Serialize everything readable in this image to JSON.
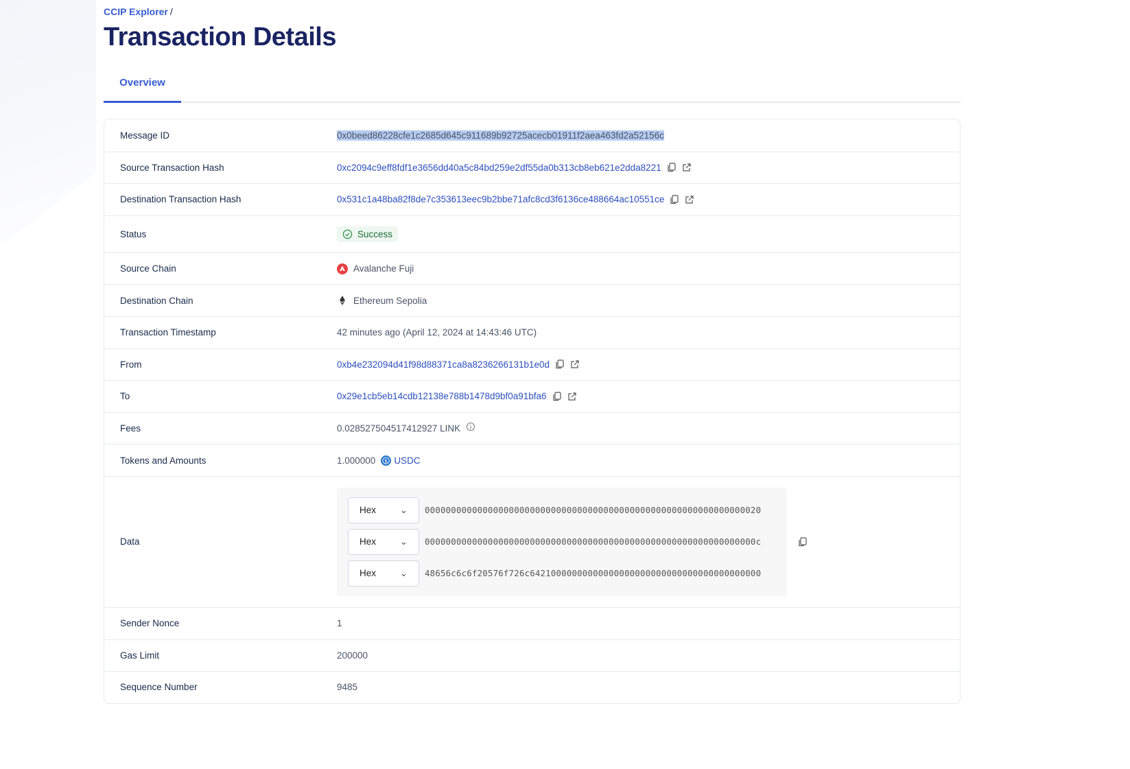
{
  "breadcrumb": {
    "root": "CCIP Explorer",
    "separator": "/"
  },
  "page_title": "Transaction Details",
  "tabs": [
    {
      "label": "Overview",
      "active": true
    }
  ],
  "colors": {
    "accent": "#375bd2",
    "title": "#1a2463",
    "success": "#1f6b3a",
    "avalanche": "#e84142"
  },
  "rows": {
    "message_id": {
      "label": "Message ID",
      "value": "0x0beed86228cfe1c2685d645c911689b92725acecb01911f2aea463fd2a52156c"
    },
    "source_tx": {
      "label": "Source Transaction Hash",
      "value": "0xc2094c9eff8fdf1e3656dd40a5c84bd259e2df55da0b313cb8eb621e2dda8221"
    },
    "dest_tx": {
      "label": "Destination Transaction Hash",
      "value": "0x531c1a48ba82f8de7c353613eec9b2bbe71afc8cd3f6136ce488664ac10551ce"
    },
    "status": {
      "label": "Status",
      "value": "Success"
    },
    "source_chain": {
      "label": "Source Chain",
      "value": "Avalanche Fuji"
    },
    "dest_chain": {
      "label": "Destination Chain",
      "value": "Ethereum Sepolia"
    },
    "timestamp": {
      "label": "Transaction Timestamp",
      "value": "42 minutes ago (April 12, 2024 at 14:43:46 UTC)"
    },
    "from": {
      "label": "From",
      "value": "0xb4e232094d41f98d88371ca8a8236266131b1e0d"
    },
    "to": {
      "label": "To",
      "value": "0x29e1cb5eb14cdb12138e788b1478d9bf0a91bfa6"
    },
    "fees": {
      "label": "Fees",
      "value": "0.028527504517412927 LINK"
    },
    "tokens": {
      "label": "Tokens and Amounts",
      "amount": "1.000000",
      "token": "USDC"
    },
    "data": {
      "label": "Data",
      "lines": [
        {
          "format": "Hex",
          "value": "0000000000000000000000000000000000000000000000000000000000000020"
        },
        {
          "format": "Hex",
          "value": "000000000000000000000000000000000000000000000000000000000000000c"
        },
        {
          "format": "Hex",
          "value": "48656c6c6f20576f726c64210000000000000000000000000000000000000000"
        }
      ]
    },
    "nonce": {
      "label": "Sender Nonce",
      "value": "1"
    },
    "gas": {
      "label": "Gas Limit",
      "value": "200000"
    },
    "sequence": {
      "label": "Sequence Number",
      "value": "9485"
    }
  }
}
